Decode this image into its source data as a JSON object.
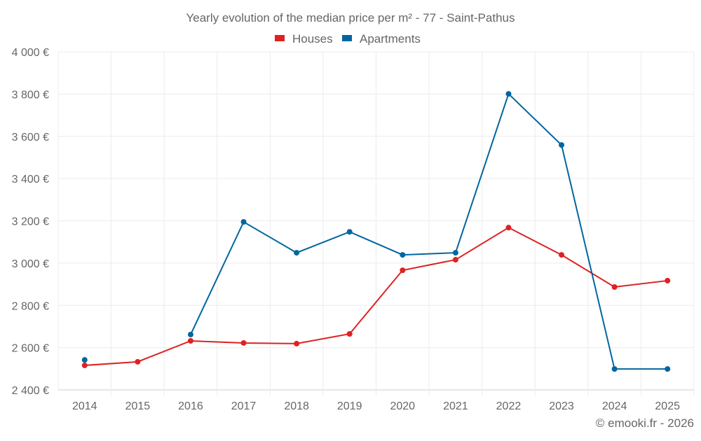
{
  "chart_data": {
    "type": "line",
    "title": "Yearly evolution of the median price per m² - 77 - Saint-Pathus",
    "xlabel": "",
    "ylabel": "",
    "categories": [
      "2014",
      "2015",
      "2016",
      "2017",
      "2018",
      "2019",
      "2020",
      "2021",
      "2022",
      "2023",
      "2024",
      "2025"
    ],
    "ylim": [
      2400,
      4000
    ],
    "yticks": [
      2400,
      2600,
      2800,
      3000,
      3200,
      3400,
      3600,
      3800,
      4000
    ],
    "ytick_labels": [
      "2 400 €",
      "2 600 €",
      "2 800 €",
      "3 000 €",
      "3 200 €",
      "3 400 €",
      "3 600 €",
      "3 800 €",
      "4 000 €"
    ],
    "grid": true,
    "legend_position": "top-center",
    "series": [
      {
        "name": "Houses",
        "color": "#dd2222",
        "values": [
          2516,
          2533,
          2632,
          2622,
          2619,
          2665,
          2966,
          3016,
          3168,
          3039,
          2887,
          2917
        ]
      },
      {
        "name": "Apartments",
        "color": "#0066a0",
        "values": [
          2542,
          null,
          2662,
          3195,
          3049,
          3148,
          3039,
          3049,
          3801,
          3559,
          2499,
          2499
        ]
      }
    ]
  },
  "credit": "© emooki.fr - 2026"
}
